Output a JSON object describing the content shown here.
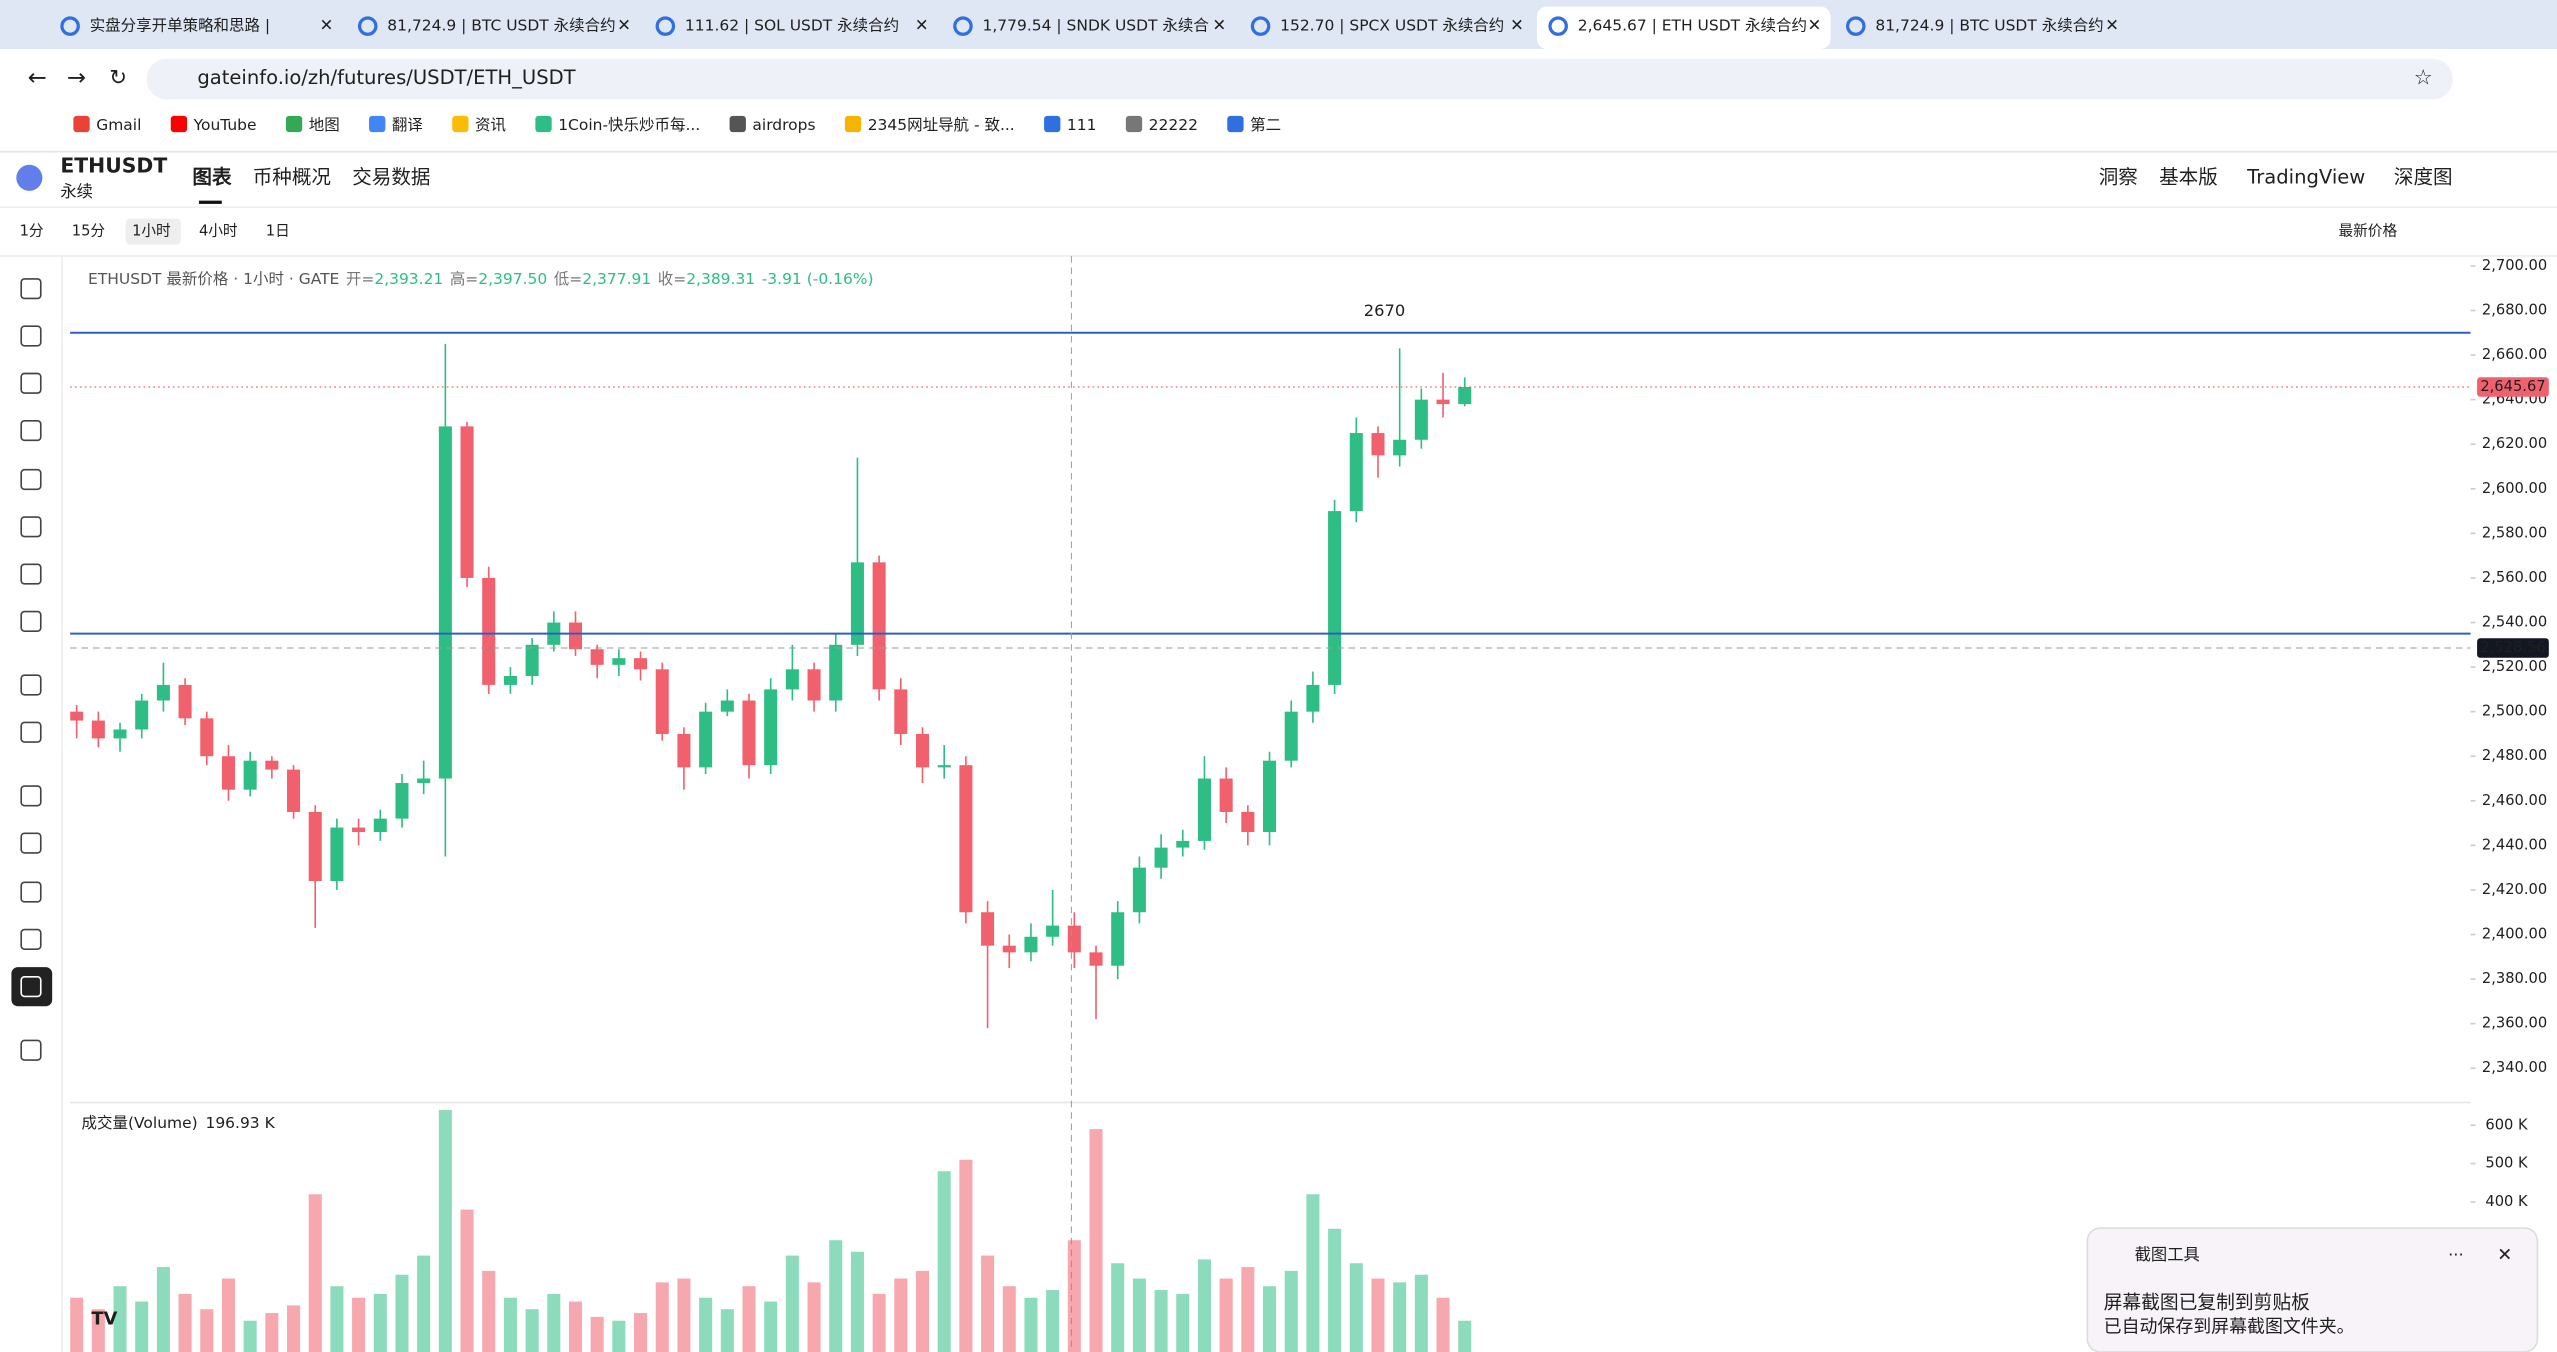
{
  "browser": {
    "tabs": [
      "实盘分享开单策略和思路 | ",
      "81,724.9 | BTC USDT 永续合约",
      "111.62 | SOL USDT 永续合约",
      "1,779.54 | SNDK USDT 永续合",
      "152.70 | SPCX USDT 永续合约",
      "2,645.67 | ETH USDT 永续合约",
      "81,724.9 | BTC USDT 永续合约"
    ],
    "url": "gateinfo.io/zh/futures/USDT/ETH_USDT",
    "bookmarks": [
      "Gmail",
      "YouTube",
      "地图",
      "翻译",
      "资讯",
      "1Coin-快乐炒币每...",
      "airdrops",
      "2345网址导航 - 致...",
      "111",
      "22222",
      "第二"
    ]
  },
  "header": {
    "symbol": "ETHUSDT",
    "sub": "永续",
    "nav": [
      "图表",
      "币种概况",
      "交易数据"
    ],
    "right": [
      "洞察",
      "基本版",
      "TradingView",
      "深度图"
    ]
  },
  "toolbar": {
    "intervals": [
      "1分",
      "15分",
      "1小时",
      "4小时",
      "1日"
    ],
    "price_mode": "最新价格"
  },
  "chart_data": {
    "type": "candlestick",
    "legend": {
      "name": "ETHUSDT 最新价格 · 1小时 · GATE",
      "ohlc": [
        {
          "label": "开=",
          "value": "2,393.21"
        },
        {
          "label": "高=",
          "value": "2,397.50"
        },
        {
          "label": "低=",
          "value": "2,377.91"
        },
        {
          "label": "收=",
          "value": "2,389.31"
        }
      ],
      "change": "-3.91 (-0.16%)"
    },
    "up_color": "#2ebd85",
    "down_color": "#f0616d",
    "open": [
      2500,
      2496,
      2488,
      2492,
      2505,
      2512,
      2497,
      2480,
      2465,
      2478,
      2474,
      2455,
      2424,
      2448,
      2446,
      2452,
      2468,
      2470,
      2628,
      2560,
      2512,
      2516,
      2530,
      2540,
      2528,
      2521,
      2524,
      2519,
      2490,
      2475,
      2500,
      2505,
      2476,
      2510,
      2519,
      2505,
      2530,
      2567,
      2510,
      2490,
      2475,
      2476,
      2410,
      2395,
      2392,
      2399,
      2404,
      2392,
      2386,
      2410,
      2430,
      2439,
      2442,
      2470,
      2455,
      2446,
      2478,
      2500,
      2512,
      2590,
      2625,
      2615,
      2622,
      2640,
      2638
    ],
    "high": [
      2503,
      2500,
      2495,
      2508,
      2522,
      2515,
      2500,
      2485,
      2482,
      2480,
      2476,
      2458,
      2452,
      2452,
      2456,
      2472,
      2478,
      2665,
      2630,
      2565,
      2520,
      2533,
      2545,
      2545,
      2530,
      2528,
      2527,
      2522,
      2493,
      2504,
      2510,
      2508,
      2515,
      2530,
      2522,
      2535,
      2614,
      2570,
      2515,
      2493,
      2485,
      2480,
      2415,
      2400,
      2405,
      2420,
      2410,
      2395,
      2415,
      2435,
      2445,
      2447,
      2480,
      2475,
      2458,
      2482,
      2505,
      2518,
      2595,
      2632,
      2628,
      2663,
      2645,
      2652,
      2650
    ],
    "low": [
      2488,
      2484,
      2482,
      2488,
      2500,
      2494,
      2476,
      2460,
      2462,
      2470,
      2452,
      2403,
      2420,
      2440,
      2442,
      2448,
      2463,
      2435,
      2556,
      2508,
      2508,
      2512,
      2527,
      2525,
      2515,
      2516,
      2514,
      2487,
      2465,
      2472,
      2498,
      2470,
      2472,
      2505,
      2500,
      2500,
      2525,
      2505,
      2485,
      2468,
      2470,
      2405,
      2358,
      2385,
      2388,
      2395,
      2385,
      2362,
      2380,
      2405,
      2425,
      2435,
      2438,
      2450,
      2440,
      2440,
      2475,
      2495,
      2508,
      2585,
      2605,
      2610,
      2618,
      2632,
      2637
    ],
    "close": [
      2496,
      2488,
      2492,
      2505,
      2512,
      2497,
      2480,
      2465,
      2478,
      2474,
      2455,
      2424,
      2448,
      2446,
      2452,
      2468,
      2470,
      2628,
      2560,
      2512,
      2516,
      2530,
      2540,
      2528,
      2521,
      2524,
      2519,
      2490,
      2475,
      2500,
      2505,
      2476,
      2510,
      2519,
      2505,
      2530,
      2567,
      2510,
      2490,
      2475,
      2476,
      2410,
      2395,
      2392,
      2399,
      2404,
      2392,
      2386,
      2410,
      2430,
      2439,
      2442,
      2470,
      2455,
      2446,
      2478,
      2500,
      2512,
      2590,
      2625,
      2615,
      2622,
      2640,
      2638,
      2645.67
    ],
    "ylim": [
      2330,
      2705
    ],
    "yticks": [
      {
        "value": 2340,
        "label": "2,340.00"
      },
      {
        "value": 2360,
        "label": "2,360.00"
      },
      {
        "value": 2380,
        "label": "2,380.00"
      },
      {
        "value": 2400,
        "label": "2,400.00"
      },
      {
        "value": 2420,
        "label": "2,420.00"
      },
      {
        "value": 2440,
        "label": "2,440.00"
      },
      {
        "value": 2460,
        "label": "2,460.00"
      },
      {
        "value": 2480,
        "label": "2,480.00"
      },
      {
        "value": 2500,
        "label": "2,500.00"
      },
      {
        "value": 2520,
        "label": "2,520.00"
      },
      {
        "value": 2540,
        "label": "2,540.00"
      },
      {
        "value": 2560,
        "label": "2,560.00"
      },
      {
        "value": 2580,
        "label": "2,580.00"
      },
      {
        "value": 2600,
        "label": "2,600.00"
      },
      {
        "value": 2620,
        "label": "2,620.00"
      },
      {
        "value": 2640,
        "label": "2,640.00"
      },
      {
        "value": 2660,
        "label": "2,660.00"
      },
      {
        "value": 2680,
        "label": "2,680.00"
      },
      {
        "value": 2700,
        "label": "2,700.00"
      }
    ],
    "hlines": [
      {
        "value": 2670,
        "color": "#2f5fc4"
      },
      {
        "value": 2535,
        "color": "#2f5fc4"
      }
    ],
    "last_price": {
      "value": 2645.67,
      "label": "2,645.67"
    },
    "crosshair_price": {
      "value": 2528.56,
      "label": "2,528.56"
    },
    "volume": {
      "title": "成交量(Volume)",
      "last": "196.93 K",
      "values": [
        150000,
        120000,
        180000,
        140000,
        230000,
        160000,
        120000,
        200000,
        90000,
        110000,
        130000,
        420000,
        180000,
        150000,
        160000,
        210000,
        260000,
        640000,
        380000,
        220000,
        150000,
        120000,
        160000,
        140000,
        100000,
        90000,
        110000,
        190000,
        200000,
        150000,
        120000,
        180000,
        140000,
        260000,
        190000,
        300000,
        270000,
        160000,
        200000,
        220000,
        480000,
        510000,
        260000,
        180000,
        150000,
        170000,
        300000,
        590000,
        240000,
        200000,
        170000,
        160000,
        250000,
        200000,
        230000,
        180000,
        220000,
        420000,
        330000,
        240000,
        200000,
        190000,
        210000,
        150000,
        90000
      ],
      "ylim": [
        0,
        640000
      ],
      "yticks": [
        {
          "value": 400000,
          "label": "400 K"
        },
        {
          "value": 500000,
          "label": "500 K"
        },
        {
          "value": 600000,
          "label": "600 K"
        }
      ]
    }
  },
  "notification": {
    "app": "截图工具",
    "title": "屏幕截图已复制到剪贴板",
    "body": "已自动保存到屏幕截图文件夹。"
  }
}
